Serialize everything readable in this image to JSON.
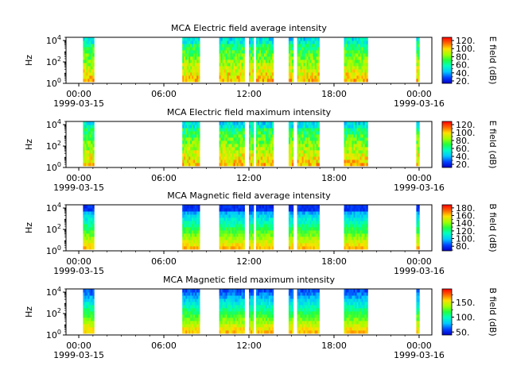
{
  "chart_data": [
    {
      "type": "heatmap",
      "title": "MCA  Electric field average intensity",
      "ylabel": "Hz",
      "colorbar_label": "E field (dB)",
      "colorbar_ticks": [
        "20.",
        "40.",
        "60.",
        "80.",
        "100.",
        "120."
      ],
      "colorbar_range": [
        14,
        128
      ],
      "y_ticks": [
        {
          "base": "10",
          "exp": "0",
          "value": 1
        },
        {
          "base": "10",
          "exp": "2",
          "value": 100
        },
        {
          "base": "10",
          "exp": "4",
          "value": 10000
        }
      ],
      "ylim": [
        1,
        20000
      ],
      "y_scale": "log",
      "x_tick_labels": [
        "00:00",
        "06:00",
        "12:00",
        "18:00",
        "00:00"
      ],
      "x_date_labels": [
        "1999-03-15",
        "1999-03-16"
      ],
      "xlim_hours": [
        -0.9,
        24.9
      ],
      "data_segments_hours": [
        [
          0.3,
          1.0
        ],
        [
          7.3,
          8.5
        ],
        [
          9.9,
          11.6
        ],
        [
          12.0,
          12.3
        ],
        [
          12.5,
          13.7
        ],
        [
          14.8,
          15.1
        ],
        [
          15.4,
          16.9
        ],
        [
          18.7,
          20.3
        ],
        [
          23.8,
          24.0
        ]
      ]
    },
    {
      "type": "heatmap",
      "title": "MCA  Electric field maximum intensity",
      "ylabel": "Hz",
      "colorbar_label": "E field (dB)",
      "colorbar_ticks": [
        "20.",
        "40.",
        "60.",
        "80.",
        "100.",
        "120."
      ],
      "colorbar_range": [
        12,
        128
      ],
      "y_ticks": [
        {
          "base": "10",
          "exp": "0",
          "value": 1
        },
        {
          "base": "10",
          "exp": "2",
          "value": 100
        },
        {
          "base": "10",
          "exp": "4",
          "value": 10000
        }
      ],
      "ylim": [
        1,
        20000
      ],
      "y_scale": "log",
      "x_tick_labels": [
        "00:00",
        "06:00",
        "12:00",
        "18:00",
        "00:00"
      ],
      "x_date_labels": [
        "1999-03-15",
        "1999-03-16"
      ],
      "xlim_hours": [
        -0.9,
        24.9
      ],
      "data_segments_hours": [
        [
          0.3,
          1.0
        ],
        [
          7.3,
          8.5
        ],
        [
          9.9,
          11.6
        ],
        [
          12.0,
          12.3
        ],
        [
          12.5,
          13.7
        ],
        [
          14.8,
          15.1
        ],
        [
          15.4,
          16.9
        ],
        [
          18.7,
          20.3
        ],
        [
          23.8,
          24.0
        ]
      ]
    },
    {
      "type": "heatmap",
      "title": "MCA  Magnetic field average intensity",
      "ylabel": "Hz",
      "colorbar_label": "B field (dB)",
      "colorbar_ticks": [
        "80.",
        "100.",
        "120.",
        "140.",
        "160.",
        "180."
      ],
      "colorbar_range": [
        68,
        188
      ],
      "y_ticks": [
        {
          "base": "10",
          "exp": "0",
          "value": 1
        },
        {
          "base": "10",
          "exp": "2",
          "value": 100
        },
        {
          "base": "10",
          "exp": "4",
          "value": 10000
        }
      ],
      "ylim": [
        1,
        20000
      ],
      "y_scale": "log",
      "x_tick_labels": [
        "00:00",
        "06:00",
        "12:00",
        "18:00",
        "00:00"
      ],
      "x_date_labels": [
        "1999-03-15",
        "1999-03-16"
      ],
      "xlim_hours": [
        -0.9,
        24.9
      ],
      "data_segments_hours": [
        [
          0.3,
          1.0
        ],
        [
          7.3,
          8.5
        ],
        [
          9.9,
          11.6
        ],
        [
          12.0,
          12.3
        ],
        [
          12.5,
          13.7
        ],
        [
          14.8,
          15.1
        ],
        [
          15.4,
          16.9
        ],
        [
          18.7,
          20.3
        ],
        [
          23.8,
          24.0
        ]
      ]
    },
    {
      "type": "heatmap",
      "title": "MCA  Magnetic field maximum intensity",
      "ylabel": "Hz",
      "colorbar_label": "B field (dB)",
      "colorbar_ticks": [
        "50.",
        "100.",
        "150."
      ],
      "colorbar_range": [
        40,
        195
      ],
      "y_ticks": [
        {
          "base": "10",
          "exp": "0",
          "value": 1
        },
        {
          "base": "10",
          "exp": "2",
          "value": 100
        },
        {
          "base": "10",
          "exp": "4",
          "value": 10000
        }
      ],
      "ylim": [
        1,
        20000
      ],
      "y_scale": "log",
      "x_tick_labels": [
        "00:00",
        "06:00",
        "12:00",
        "18:00",
        "00:00"
      ],
      "x_date_labels": [
        "1999-03-15",
        "1999-03-16"
      ],
      "xlim_hours": [
        -0.9,
        24.9
      ],
      "data_segments_hours": [
        [
          0.3,
          1.0
        ],
        [
          7.3,
          8.5
        ],
        [
          9.9,
          11.6
        ],
        [
          12.0,
          12.3
        ],
        [
          12.5,
          13.7
        ],
        [
          14.8,
          15.1
        ],
        [
          15.4,
          16.9
        ],
        [
          18.7,
          20.3
        ],
        [
          23.8,
          24.0
        ]
      ]
    }
  ]
}
